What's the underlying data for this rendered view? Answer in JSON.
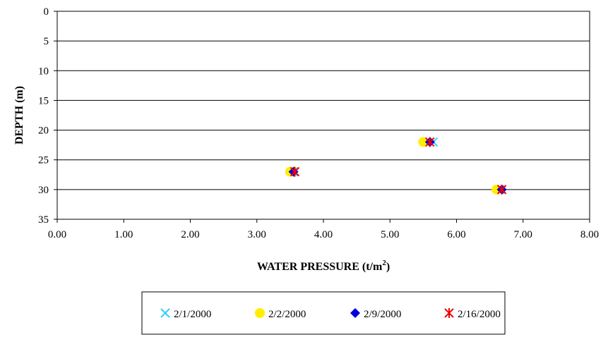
{
  "chart_data": {
    "type": "scatter",
    "xlabel": "WATER PRESSURE (t/m",
    "xlabel_sup": "2",
    "xlabel_end": ")",
    "ylabel": "DEPTH (m)",
    "xlim": [
      0,
      8
    ],
    "ylim": [
      0,
      35
    ],
    "y_inverted": true,
    "x_ticks": [
      "0.00",
      "1.00",
      "2.00",
      "3.00",
      "4.00",
      "5.00",
      "6.00",
      "7.00",
      "8.00"
    ],
    "y_ticks": [
      "0",
      "5",
      "10",
      "15",
      "20",
      "25",
      "30",
      "35"
    ],
    "grid": "horizontal",
    "legend_position": "bottom",
    "series": [
      {
        "name": "2/1/2000",
        "marker": "x",
        "color": "#33ccff",
        "points": [
          {
            "x": 5.65,
            "y": 22
          },
          {
            "x": 3.55,
            "y": 27
          },
          {
            "x": 6.65,
            "y": 30
          }
        ]
      },
      {
        "name": "2/2/2000",
        "marker": "circle",
        "color": "#ffee00",
        "points": [
          {
            "x": 5.5,
            "y": 22
          },
          {
            "x": 3.5,
            "y": 27
          },
          {
            "x": 6.6,
            "y": 30
          }
        ]
      },
      {
        "name": "2/9/2000",
        "marker": "diamond",
        "color": "#0000dd",
        "points": [
          {
            "x": 5.6,
            "y": 22
          },
          {
            "x": 3.55,
            "y": 27
          },
          {
            "x": 6.68,
            "y": 30
          }
        ]
      },
      {
        "name": "2/16/2000",
        "marker": "star",
        "color": "#ee0000",
        "points": [
          {
            "x": 5.6,
            "y": 22
          },
          {
            "x": 3.57,
            "y": 27
          },
          {
            "x": 6.68,
            "y": 30
          }
        ]
      }
    ]
  }
}
